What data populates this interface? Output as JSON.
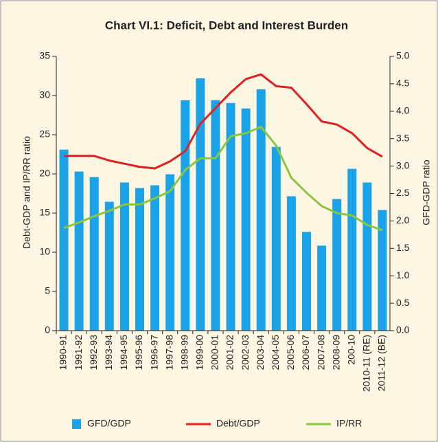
{
  "chart_data": {
    "type": "bar-line",
    "title": "Chart VI.1: Deficit, Debt and Interest Burden",
    "ylabel": "Debt-GDP and  IP/RR ratio",
    "y2label": "GFD-GDP ratio",
    "categories": [
      "1990-91",
      "1991-92",
      "1992-93",
      "1993-94",
      "1994-95",
      "1995-96",
      "1996-97",
      "1997-98",
      "1998-99",
      "1999-00",
      "2000-01",
      "2001-02",
      "2002-03",
      "2003-04",
      "2004-05",
      "2005-06",
      "2006-07",
      "2007-08",
      "2008-09",
      "200-10",
      "2010-11 (RE)",
      "2011-12 (BE)"
    ],
    "series": [
      {
        "name": "GFD/GDP",
        "type": "bar",
        "axis": "y2",
        "color": "#1aa3e8",
        "values": [
          3.3,
          2.9,
          2.8,
          2.35,
          2.7,
          2.6,
          2.65,
          2.85,
          4.2,
          4.6,
          4.2,
          4.15,
          4.05,
          4.4,
          3.35,
          2.45,
          1.8,
          1.55,
          2.4,
          2.95,
          2.7,
          2.2
        ]
      },
      {
        "name": "Debt/GDP",
        "type": "line",
        "color": "#e02020",
        "values": [
          22.3,
          22.3,
          22.3,
          21.7,
          21.3,
          20.9,
          20.7,
          21.6,
          22.9,
          26.4,
          28.4,
          30.4,
          32.1,
          32.7,
          31.2,
          31.0,
          28.9,
          26.7,
          26.3,
          25.2,
          23.3,
          22.2
        ]
      },
      {
        "name": "IP/RR",
        "type": "line",
        "color": "#8cc63f",
        "values": [
          13.1,
          13.8,
          14.6,
          15.3,
          16.1,
          16.1,
          16.9,
          17.8,
          20.5,
          22.0,
          22.0,
          24.8,
          25.2,
          26.0,
          23.6,
          19.5,
          17.6,
          15.9,
          15.0,
          14.7,
          13.5,
          12.8
        ]
      }
    ],
    "ylim": [
      0,
      35
    ],
    "yticks": [
      0,
      5,
      10,
      15,
      20,
      25,
      30,
      35
    ],
    "y2lim": [
      0,
      5
    ],
    "y2ticks": [
      {
        "value": 0,
        "label": "0.0"
      },
      0.5,
      {
        "value": 1,
        "label": "1.0"
      },
      1.5,
      {
        "value": 2,
        "label": "2.0"
      },
      2.5,
      {
        "value": 3,
        "label": "3.0"
      },
      3.5,
      {
        "value": 4,
        "label": "4.0"
      },
      4.5,
      {
        "value": 5,
        "label": "5.0"
      }
    ],
    "grid": false
  }
}
